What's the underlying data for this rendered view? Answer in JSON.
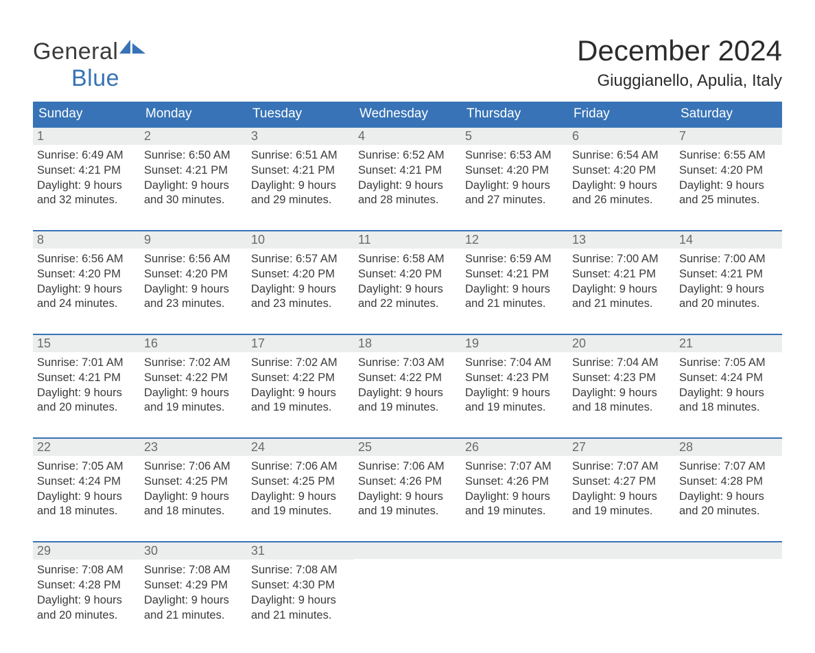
{
  "colors": {
    "brand_blue": "#3773b6",
    "header_bg": "#3773b6",
    "header_text": "#ffffff",
    "daynum_bg": "#eceded",
    "daynum_text": "#6a6a6a",
    "body_text": "#3a3a3a",
    "page_bg": "#ffffff",
    "week_border": "#3773b6"
  },
  "logo": {
    "line1": "General",
    "line2": "Blue"
  },
  "title": "December 2024",
  "location": "Giuggianello, Apulia, Italy",
  "days_of_week": [
    "Sunday",
    "Monday",
    "Tuesday",
    "Wednesday",
    "Thursday",
    "Friday",
    "Saturday"
  ],
  "weeks": [
    [
      {
        "n": "1",
        "l1": "Sunrise: 6:49 AM",
        "l2": "Sunset: 4:21 PM",
        "l3": "Daylight: 9 hours",
        "l4": "and 32 minutes."
      },
      {
        "n": "2",
        "l1": "Sunrise: 6:50 AM",
        "l2": "Sunset: 4:21 PM",
        "l3": "Daylight: 9 hours",
        "l4": "and 30 minutes."
      },
      {
        "n": "3",
        "l1": "Sunrise: 6:51 AM",
        "l2": "Sunset: 4:21 PM",
        "l3": "Daylight: 9 hours",
        "l4": "and 29 minutes."
      },
      {
        "n": "4",
        "l1": "Sunrise: 6:52 AM",
        "l2": "Sunset: 4:21 PM",
        "l3": "Daylight: 9 hours",
        "l4": "and 28 minutes."
      },
      {
        "n": "5",
        "l1": "Sunrise: 6:53 AM",
        "l2": "Sunset: 4:20 PM",
        "l3": "Daylight: 9 hours",
        "l4": "and 27 minutes."
      },
      {
        "n": "6",
        "l1": "Sunrise: 6:54 AM",
        "l2": "Sunset: 4:20 PM",
        "l3": "Daylight: 9 hours",
        "l4": "and 26 minutes."
      },
      {
        "n": "7",
        "l1": "Sunrise: 6:55 AM",
        "l2": "Sunset: 4:20 PM",
        "l3": "Daylight: 9 hours",
        "l4": "and 25 minutes."
      }
    ],
    [
      {
        "n": "8",
        "l1": "Sunrise: 6:56 AM",
        "l2": "Sunset: 4:20 PM",
        "l3": "Daylight: 9 hours",
        "l4": "and 24 minutes."
      },
      {
        "n": "9",
        "l1": "Sunrise: 6:56 AM",
        "l2": "Sunset: 4:20 PM",
        "l3": "Daylight: 9 hours",
        "l4": "and 23 minutes."
      },
      {
        "n": "10",
        "l1": "Sunrise: 6:57 AM",
        "l2": "Sunset: 4:20 PM",
        "l3": "Daylight: 9 hours",
        "l4": "and 23 minutes."
      },
      {
        "n": "11",
        "l1": "Sunrise: 6:58 AM",
        "l2": "Sunset: 4:20 PM",
        "l3": "Daylight: 9 hours",
        "l4": "and 22 minutes."
      },
      {
        "n": "12",
        "l1": "Sunrise: 6:59 AM",
        "l2": "Sunset: 4:21 PM",
        "l3": "Daylight: 9 hours",
        "l4": "and 21 minutes."
      },
      {
        "n": "13",
        "l1": "Sunrise: 7:00 AM",
        "l2": "Sunset: 4:21 PM",
        "l3": "Daylight: 9 hours",
        "l4": "and 21 minutes."
      },
      {
        "n": "14",
        "l1": "Sunrise: 7:00 AM",
        "l2": "Sunset: 4:21 PM",
        "l3": "Daylight: 9 hours",
        "l4": "and 20 minutes."
      }
    ],
    [
      {
        "n": "15",
        "l1": "Sunrise: 7:01 AM",
        "l2": "Sunset: 4:21 PM",
        "l3": "Daylight: 9 hours",
        "l4": "and 20 minutes."
      },
      {
        "n": "16",
        "l1": "Sunrise: 7:02 AM",
        "l2": "Sunset: 4:22 PM",
        "l3": "Daylight: 9 hours",
        "l4": "and 19 minutes."
      },
      {
        "n": "17",
        "l1": "Sunrise: 7:02 AM",
        "l2": "Sunset: 4:22 PM",
        "l3": "Daylight: 9 hours",
        "l4": "and 19 minutes."
      },
      {
        "n": "18",
        "l1": "Sunrise: 7:03 AM",
        "l2": "Sunset: 4:22 PM",
        "l3": "Daylight: 9 hours",
        "l4": "and 19 minutes."
      },
      {
        "n": "19",
        "l1": "Sunrise: 7:04 AM",
        "l2": "Sunset: 4:23 PM",
        "l3": "Daylight: 9 hours",
        "l4": "and 19 minutes."
      },
      {
        "n": "20",
        "l1": "Sunrise: 7:04 AM",
        "l2": "Sunset: 4:23 PM",
        "l3": "Daylight: 9 hours",
        "l4": "and 18 minutes."
      },
      {
        "n": "21",
        "l1": "Sunrise: 7:05 AM",
        "l2": "Sunset: 4:24 PM",
        "l3": "Daylight: 9 hours",
        "l4": "and 18 minutes."
      }
    ],
    [
      {
        "n": "22",
        "l1": "Sunrise: 7:05 AM",
        "l2": "Sunset: 4:24 PM",
        "l3": "Daylight: 9 hours",
        "l4": "and 18 minutes."
      },
      {
        "n": "23",
        "l1": "Sunrise: 7:06 AM",
        "l2": "Sunset: 4:25 PM",
        "l3": "Daylight: 9 hours",
        "l4": "and 18 minutes."
      },
      {
        "n": "24",
        "l1": "Sunrise: 7:06 AM",
        "l2": "Sunset: 4:25 PM",
        "l3": "Daylight: 9 hours",
        "l4": "and 19 minutes."
      },
      {
        "n": "25",
        "l1": "Sunrise: 7:06 AM",
        "l2": "Sunset: 4:26 PM",
        "l3": "Daylight: 9 hours",
        "l4": "and 19 minutes."
      },
      {
        "n": "26",
        "l1": "Sunrise: 7:07 AM",
        "l2": "Sunset: 4:26 PM",
        "l3": "Daylight: 9 hours",
        "l4": "and 19 minutes."
      },
      {
        "n": "27",
        "l1": "Sunrise: 7:07 AM",
        "l2": "Sunset: 4:27 PM",
        "l3": "Daylight: 9 hours",
        "l4": "and 19 minutes."
      },
      {
        "n": "28",
        "l1": "Sunrise: 7:07 AM",
        "l2": "Sunset: 4:28 PM",
        "l3": "Daylight: 9 hours",
        "l4": "and 20 minutes."
      }
    ],
    [
      {
        "n": "29",
        "l1": "Sunrise: 7:08 AM",
        "l2": "Sunset: 4:28 PM",
        "l3": "Daylight: 9 hours",
        "l4": "and 20 minutes."
      },
      {
        "n": "30",
        "l1": "Sunrise: 7:08 AM",
        "l2": "Sunset: 4:29 PM",
        "l3": "Daylight: 9 hours",
        "l4": "and 21 minutes."
      },
      {
        "n": "31",
        "l1": "Sunrise: 7:08 AM",
        "l2": "Sunset: 4:30 PM",
        "l3": "Daylight: 9 hours",
        "l4": "and 21 minutes."
      },
      null,
      null,
      null,
      null
    ]
  ]
}
